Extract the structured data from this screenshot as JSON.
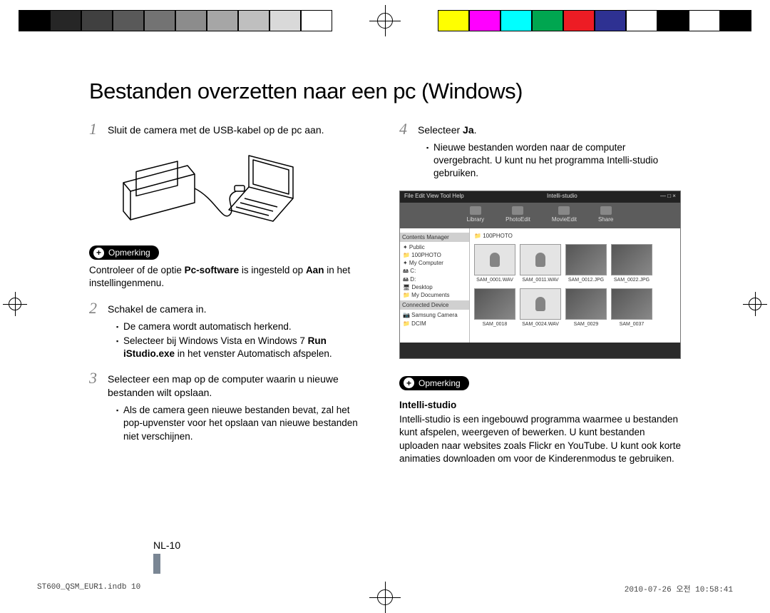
{
  "colorbar": {
    "grayscale": [
      "#000000",
      "#262626",
      "#404040",
      "#595959",
      "#737373",
      "#8c8c8c",
      "#a6a6a6",
      "#bfbfbf",
      "#d9d9d9",
      "#ffffff"
    ],
    "colors": [
      "#ffff00",
      "#ff00ff",
      "#00ffff",
      "#00a650",
      "#ed1c24",
      "#2e3192",
      "#ffffff",
      "#000000",
      "#ffffff",
      "#000000"
    ]
  },
  "title": "Bestanden overzetten naar een pc (Windows)",
  "steps": {
    "s1": {
      "num": "1",
      "text": "Sluit de camera met de USB-kabel op de pc aan."
    },
    "s2": {
      "num": "2",
      "text": "Schakel de camera in.",
      "b1": "De camera wordt automatisch herkend.",
      "b2_pre": "Selecteer bij Windows Vista en Windows 7 ",
      "b2_bold": "Run iStudio.exe",
      "b2_post": " in het venster Automatisch afspelen."
    },
    "s3": {
      "num": "3",
      "text": "Selecteer een map op de computer waarin u nieuwe bestanden wilt opslaan.",
      "b1": "Als de camera geen nieuwe bestanden bevat, zal het pop-upvenster voor het opslaan van nieuwe bestanden niet verschijnen."
    },
    "s4": {
      "num": "4",
      "text_pre": "Selecteer ",
      "text_bold": "Ja",
      "text_post": ".",
      "b1": "Nieuwe bestanden worden naar de computer overgebracht. U kunt nu het programma Intelli-studio gebruiken."
    }
  },
  "note1": {
    "label": "Opmerking",
    "text_pre": "Controleer of de optie ",
    "bold1": "Pc-software",
    "mid": " is ingesteld op ",
    "bold2": "Aan",
    "post": " in het instellingenmenu."
  },
  "note2": {
    "label": "Opmerking",
    "heading": "Intelli-studio",
    "text": "Intelli-studio is een ingebouwd programma waarmee u bestanden kunt afspelen, weergeven of bewerken. U kunt bestanden uploaden naar websites zoals Flickr en YouTube. U kunt ook korte animaties downloaden om voor de Kinderenmodus te gebruiken."
  },
  "screenshot": {
    "title": "Intelli-studio",
    "menu": "File  Edit  View  Tool  Help",
    "tabs": [
      "Library",
      "PhotoEdit",
      "MovieEdit",
      "Share"
    ],
    "side_hdr1": "Contents Manager",
    "side_items1": [
      "✦ Public",
      "  📁 100PHOTO",
      "✦ My Computer",
      "  🖴 C:",
      "  🖴 D:",
      "  🖥 Desktop",
      "  📁 My Documents"
    ],
    "side_hdr2": "Connected Device",
    "side_items2": [
      "📷 Samsung Camera",
      "  📁 DCIM"
    ],
    "folder": "100PHOTO",
    "thumbs": [
      "SAM_0001.WAV",
      "SAM_0011.WAV",
      "SAM_0012.JPG",
      "SAM_0022.JPG",
      "SAM_0018",
      "SAM_0024.WAV",
      "SAM_0029",
      "SAM_0037"
    ]
  },
  "pagenum": "NL-10",
  "footer": {
    "left": "ST600_QSM_EUR1.indb   10",
    "right": "2010-07-26   오전 10:58:41"
  }
}
